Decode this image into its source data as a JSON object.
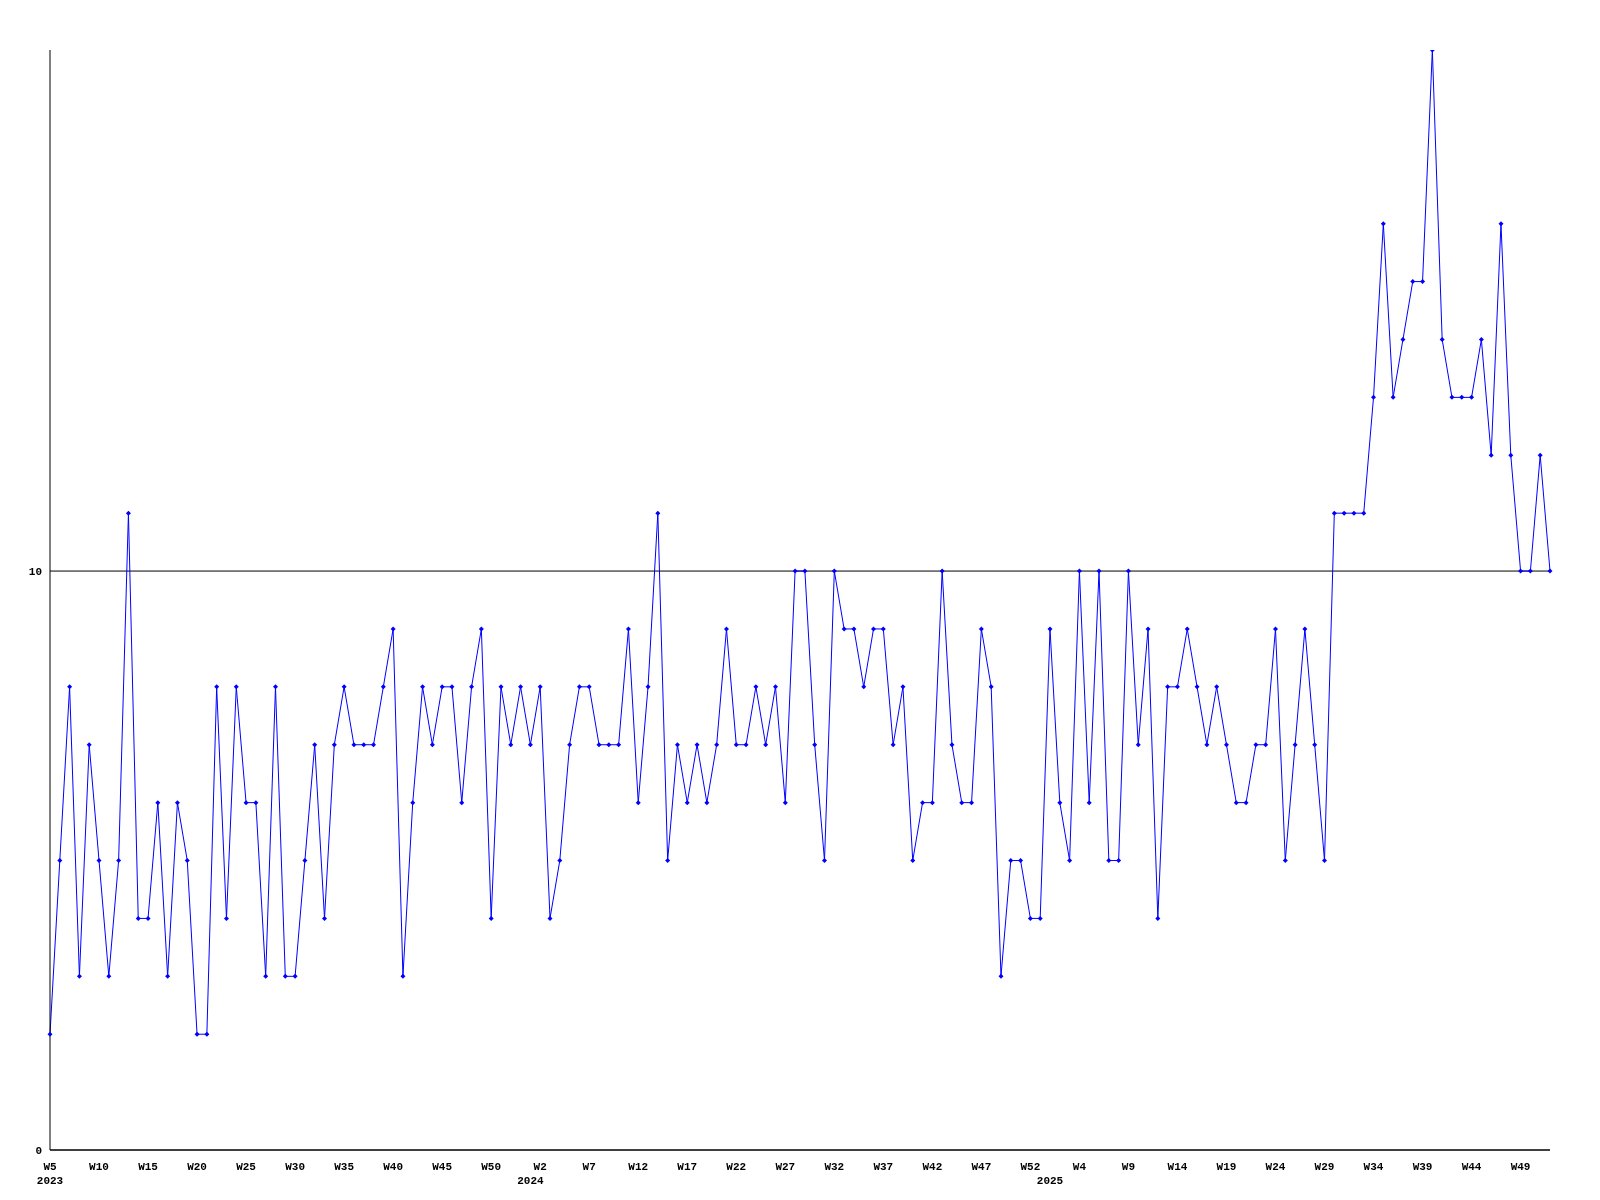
{
  "chart_data": {
    "type": "line",
    "categories": [
      "W5\n2023",
      null,
      null,
      null,
      null,
      "W10",
      null,
      null,
      null,
      null,
      "W15",
      null,
      null,
      null,
      null,
      "W20",
      null,
      null,
      null,
      null,
      "W25",
      null,
      null,
      null,
      null,
      "W30",
      null,
      null,
      null,
      null,
      "W35",
      null,
      null,
      null,
      null,
      "W40",
      null,
      null,
      null,
      null,
      "W45",
      null,
      null,
      null,
      null,
      "W50",
      null,
      null,
      null,
      "\n2024",
      "W2",
      null,
      null,
      null,
      null,
      "W7",
      null,
      null,
      null,
      null,
      "W12",
      null,
      null,
      null,
      null,
      "W17",
      null,
      null,
      null,
      null,
      "W22",
      null,
      null,
      null,
      null,
      "W27",
      null,
      null,
      null,
      null,
      "W32",
      null,
      null,
      null,
      null,
      "W37",
      null,
      null,
      null,
      null,
      "W42",
      null,
      null,
      null,
      null,
      "W47",
      null,
      null,
      null,
      null,
      "W52",
      null,
      "\n2025",
      null,
      null,
      "W4",
      null,
      null,
      null,
      null,
      "W9",
      null,
      null,
      null,
      null,
      "W14",
      null,
      null,
      null,
      null,
      "W19",
      null,
      null,
      null,
      null,
      "W24",
      null,
      null,
      null,
      null,
      "W29",
      null,
      null,
      null,
      null,
      "W34",
      null,
      null,
      null,
      null,
      "W39",
      null,
      null,
      null,
      null,
      "W44",
      null,
      null,
      null,
      null,
      "W49",
      null,
      null,
      null
    ],
    "series": [
      {
        "color": "#0000ff",
        "values": [
          2,
          5,
          8,
          3,
          7,
          5,
          3,
          5,
          11,
          4,
          4,
          6,
          3,
          6,
          5,
          2,
          2,
          8,
          4,
          8,
          6,
          6,
          3,
          8,
          3,
          3,
          5,
          7,
          4,
          7,
          8,
          7,
          7,
          7,
          8,
          9,
          3,
          6,
          8,
          7,
          8,
          8,
          6,
          8,
          9,
          4,
          8,
          7,
          8,
          7,
          8,
          4,
          5,
          7,
          8,
          8,
          7,
          7,
          7,
          9,
          6,
          8,
          11,
          5,
          7,
          6,
          7,
          6,
          7,
          9,
          7,
          7,
          8,
          7,
          8,
          6,
          10,
          10,
          7,
          5,
          10,
          9,
          9,
          8,
          9,
          9,
          7,
          8,
          5,
          6,
          6,
          10,
          7,
          6,
          6,
          9,
          8,
          3,
          5,
          5,
          4,
          4,
          9,
          6,
          5,
          10,
          6,
          10,
          5,
          5,
          10,
          7,
          9,
          4,
          8,
          8,
          9,
          8,
          7,
          8,
          7,
          6,
          6,
          7,
          7,
          9,
          5,
          7,
          9,
          7,
          5,
          11,
          11,
          11,
          11,
          13,
          16,
          13,
          14,
          15,
          15,
          19,
          14,
          13,
          13,
          13,
          14,
          12,
          16,
          12,
          10,
          10,
          12,
          10
        ]
      }
    ],
    "ylim": [
      0,
      19
    ],
    "yticks": [
      0,
      10
    ],
    "grid": "y",
    "marker": "diamond",
    "line_style": "solid",
    "legend": false
  }
}
